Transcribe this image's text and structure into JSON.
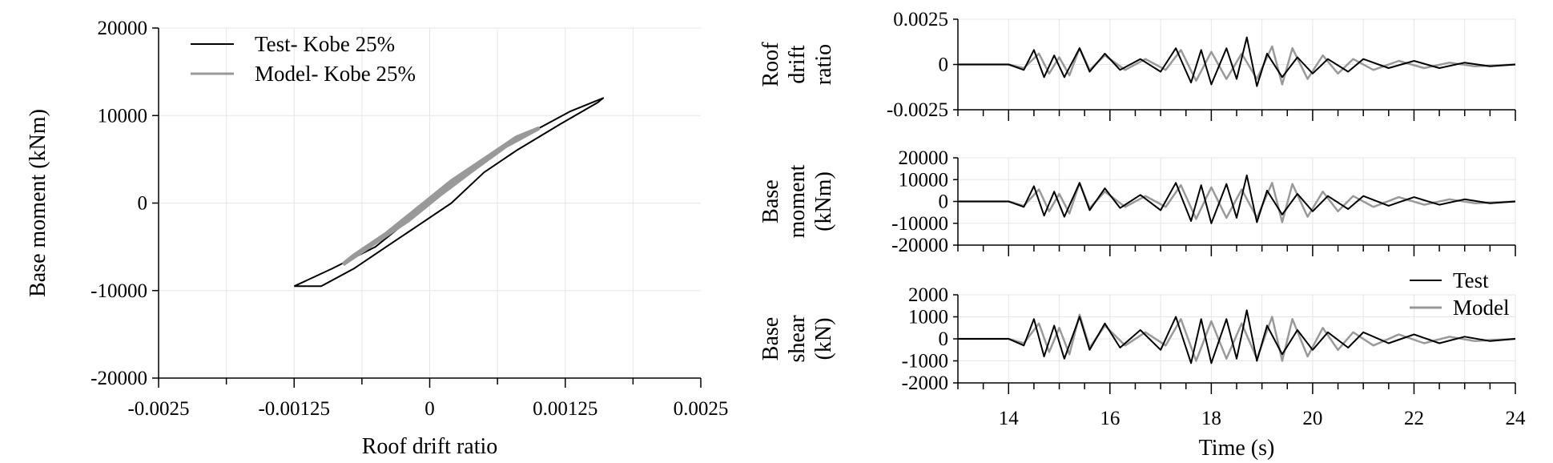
{
  "colors": {
    "test": "#000000",
    "model": "#999999",
    "grid": "#e6e6e6",
    "axis": "#000000"
  },
  "chart_data": [
    {
      "type": "line",
      "xlabel": "Roof drift ratio",
      "ylabel": "Base moment (kNm)",
      "xlim": [
        -0.0025,
        0.0025
      ],
      "ylim": [
        -20000,
        20000
      ],
      "xticks": [
        -0.0025,
        -0.00125,
        0,
        0.00125,
        0.0025
      ],
      "xtick_labels": [
        "-0.0025",
        "-0.00125",
        "0",
        "0.00125",
        "0.0025"
      ],
      "yticks": [
        20000,
        10000,
        0,
        -10000,
        -20000
      ],
      "ytick_labels": [
        "20000",
        "10000",
        "0",
        "-10000",
        "-20000"
      ],
      "grid": true,
      "legend": "top-left",
      "series": [
        {
          "name": "Test- Kobe 25%",
          "x": [
            -0.00125,
            -0.0009,
            -0.0005,
            -0.0002,
            0.0001,
            0.0004,
            0.0007,
            0.001,
            0.0013,
            0.0016,
            0.00155,
            0.0012,
            0.0008,
            0.0005,
            0.0002,
            -0.0001,
            -0.0004,
            -0.0007,
            -0.001,
            -0.00125
          ],
          "y": [
            -9500,
            -7500,
            -5000,
            -2000,
            1000,
            4000,
            6500,
            8500,
            10500,
            12000,
            11500,
            9000,
            6000,
            3500,
            0,
            -2500,
            -5000,
            -7500,
            -9500,
            -9500
          ]
        },
        {
          "name": "Model- Kobe 25%",
          "x": [
            -0.0008,
            -0.0005,
            -0.0002,
            0.0001,
            0.0004,
            0.0007,
            0.001,
            0.0008,
            0.0005,
            0.0002,
            -0.0001,
            -0.0004,
            -0.0007,
            -0.0008
          ],
          "y": [
            -7000,
            -4500,
            -2000,
            1000,
            3800,
            6500,
            8500,
            7500,
            5000,
            2500,
            -500,
            -3500,
            -6000,
            -7000
          ]
        }
      ]
    },
    {
      "type": "line",
      "ylabel": "Roof drift ratio",
      "xlim": [
        13,
        24
      ],
      "ylim": [
        -0.0025,
        0.0025
      ],
      "yticks": [
        0.0025,
        0,
        -0.0025
      ],
      "ytick_labels": [
        "0.0025",
        "0",
        "-0.0025"
      ],
      "grid": true,
      "series": [
        {
          "name": "Test",
          "x": [
            13,
            14.0,
            14.3,
            14.5,
            14.7,
            14.9,
            15.1,
            15.4,
            15.6,
            15.9,
            16.2,
            16.6,
            17.0,
            17.3,
            17.6,
            17.8,
            18.0,
            18.3,
            18.5,
            18.7,
            18.9,
            19.1,
            19.4,
            19.7,
            20.0,
            20.3,
            20.7,
            21.0,
            21.5,
            22.0,
            22.5,
            23.0,
            23.5,
            24
          ],
          "y": [
            0,
            0,
            -0.0003,
            0.0008,
            -0.0007,
            0.0005,
            -0.0007,
            0.0009,
            -0.0004,
            0.0006,
            -0.0003,
            0.0003,
            -0.0004,
            0.0009,
            -0.001,
            0.0008,
            -0.0011,
            0.0009,
            -0.0008,
            0.0015,
            -0.0012,
            0.0006,
            -0.0007,
            0.0004,
            -0.0005,
            0.0003,
            -0.0004,
            0.0003,
            -0.0002,
            0.0002,
            -0.0002,
            0.0001,
            -0.0001,
            0
          ]
        },
        {
          "name": "Model",
          "x": [
            13,
            14.0,
            14.3,
            14.6,
            14.8,
            15.0,
            15.2,
            15.4,
            15.6,
            15.9,
            16.3,
            16.7,
            17.1,
            17.4,
            17.7,
            18.0,
            18.3,
            18.6,
            18.9,
            19.2,
            19.4,
            19.6,
            19.9,
            20.2,
            20.5,
            20.8,
            21.2,
            21.7,
            22.2,
            22.7,
            23.2,
            24
          ],
          "y": [
            0,
            0,
            -0.0002,
            0.0006,
            -0.0005,
            0.0004,
            -0.0006,
            0.0009,
            -0.0003,
            0.0005,
            -0.0003,
            0.0003,
            -0.0003,
            0.0008,
            -0.0009,
            0.0007,
            -0.0008,
            0.0006,
            -0.0008,
            0.001,
            -0.0011,
            0.0009,
            -0.0008,
            0.0005,
            -0.0005,
            0.0003,
            -0.0003,
            0.0002,
            -0.0002,
            0.0001,
            -0.0001,
            0
          ]
        }
      ]
    },
    {
      "type": "line",
      "ylabel": "Base moment (kNm)",
      "xlim": [
        13,
        24
      ],
      "ylim": [
        -20000,
        20000
      ],
      "yticks": [
        20000,
        10000,
        0,
        -10000,
        -20000
      ],
      "ytick_labels": [
        "20000",
        "10000",
        "0",
        "-10000",
        "-20000"
      ],
      "grid": true,
      "series": [
        {
          "name": "Test",
          "x": [
            13,
            14.0,
            14.3,
            14.5,
            14.7,
            14.9,
            15.1,
            15.4,
            15.6,
            15.9,
            16.2,
            16.6,
            17.0,
            17.3,
            17.6,
            17.8,
            18.0,
            18.3,
            18.5,
            18.7,
            18.9,
            19.1,
            19.4,
            19.7,
            20.0,
            20.3,
            20.7,
            21.0,
            21.5,
            22.0,
            22.5,
            23.0,
            23.5,
            24
          ],
          "y": [
            0,
            0,
            -2500,
            7000,
            -6500,
            4500,
            -7000,
            8500,
            -4000,
            6000,
            -3000,
            3000,
            -4000,
            8500,
            -9000,
            7500,
            -10000,
            8000,
            -7500,
            12000,
            -9500,
            5000,
            -6000,
            3500,
            -4500,
            2500,
            -3500,
            2500,
            -2000,
            2000,
            -1500,
            1000,
            -800,
            0
          ]
        },
        {
          "name": "Model",
          "x": [
            13,
            14.0,
            14.3,
            14.6,
            14.8,
            15.0,
            15.2,
            15.4,
            15.6,
            15.9,
            16.3,
            16.7,
            17.1,
            17.4,
            17.7,
            18.0,
            18.3,
            18.6,
            18.9,
            19.2,
            19.4,
            19.6,
            19.9,
            20.2,
            20.5,
            20.8,
            21.2,
            21.7,
            22.2,
            22.7,
            23.2,
            24
          ],
          "y": [
            0,
            0,
            -2000,
            5500,
            -4500,
            3500,
            -5500,
            8500,
            -3000,
            4500,
            -2500,
            2500,
            -2500,
            7500,
            -8000,
            6500,
            -7500,
            5500,
            -7500,
            8500,
            -9500,
            8000,
            -7000,
            4500,
            -4500,
            2500,
            -2500,
            2000,
            -1500,
            1000,
            -800,
            0
          ]
        }
      ]
    },
    {
      "type": "line",
      "ylabel": "Base shear (kN)",
      "xlabel": "Time (s)",
      "xlim": [
        13,
        24
      ],
      "ylim": [
        -2000,
        2000
      ],
      "xticks": [
        14,
        16,
        18,
        20,
        22,
        24
      ],
      "xtick_labels": [
        "14",
        "16",
        "18",
        "20",
        "22",
        "24"
      ],
      "yticks": [
        2000,
        1000,
        0,
        -1000,
        -2000
      ],
      "ytick_labels": [
        "2000",
        "1000",
        "0",
        "-1000",
        "-2000"
      ],
      "grid": true,
      "legend": "top-right",
      "series": [
        {
          "name": "Test",
          "x": [
            13,
            14.0,
            14.3,
            14.5,
            14.7,
            14.9,
            15.1,
            15.4,
            15.6,
            15.9,
            16.2,
            16.6,
            17.0,
            17.3,
            17.6,
            17.8,
            18.0,
            18.3,
            18.5,
            18.7,
            18.9,
            19.1,
            19.4,
            19.7,
            20.0,
            20.3,
            20.7,
            21.0,
            21.5,
            22.0,
            22.5,
            23.0,
            23.5,
            24
          ],
          "y": [
            0,
            0,
            -300,
            900,
            -800,
            600,
            -900,
            1000,
            -500,
            700,
            -400,
            400,
            -500,
            1000,
            -1100,
            900,
            -1100,
            900,
            -900,
            1300,
            -1000,
            600,
            -700,
            400,
            -500,
            300,
            -400,
            300,
            -200,
            200,
            -200,
            100,
            -100,
            0
          ]
        },
        {
          "name": "Model",
          "x": [
            13,
            14.0,
            14.3,
            14.6,
            14.8,
            15.0,
            15.2,
            15.4,
            15.6,
            15.9,
            16.3,
            16.7,
            17.1,
            17.4,
            17.7,
            18.0,
            18.3,
            18.6,
            18.9,
            19.2,
            19.4,
            19.6,
            19.9,
            20.2,
            20.5,
            20.8,
            21.2,
            21.7,
            22.2,
            22.7,
            23.2,
            24
          ],
          "y": [
            0,
            0,
            -200,
            700,
            -600,
            500,
            -700,
            1100,
            -400,
            600,
            -300,
            300,
            -300,
            900,
            -1000,
            800,
            -900,
            700,
            -900,
            1000,
            -1000,
            900,
            -800,
            500,
            -500,
            300,
            -300,
            200,
            -200,
            100,
            -100,
            0
          ]
        }
      ]
    }
  ]
}
